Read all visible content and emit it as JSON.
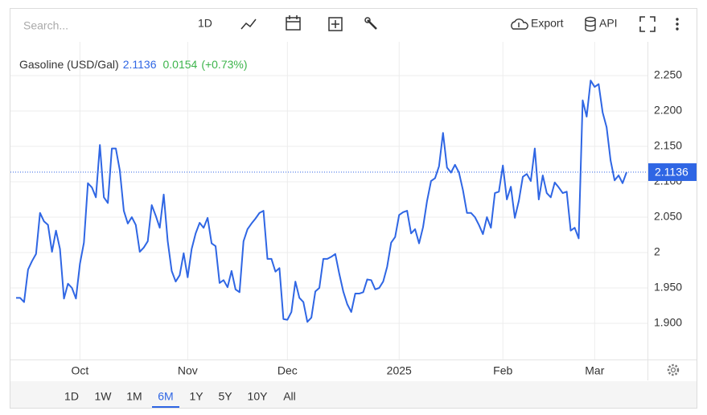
{
  "toolbar": {
    "search_placeholder": "Search...",
    "interval": "1D",
    "export": "Export",
    "api": "API"
  },
  "range_buttons": {
    "items": [
      "1D",
      "1W",
      "1M",
      "6M",
      "1Y",
      "5Y",
      "10Y",
      "All"
    ],
    "selected": "6M"
  },
  "chart_data": {
    "type": "line",
    "legend_name": "Gasoline (USD/Gal)",
    "change": "0.0154",
    "change_pct": "(+0.73%)",
    "categories": [
      null,
      null,
      null,
      null,
      null,
      null,
      null,
      null,
      null,
      null,
      null,
      null,
      null,
      null,
      null,
      null,
      "Oct",
      null,
      null,
      null,
      null,
      null,
      null,
      null,
      null,
      null,
      null,
      null,
      null,
      null,
      null,
      null,
      null,
      null,
      null,
      null,
      null,
      null,
      null,
      null,
      null,
      null,
      null,
      "Nov",
      null,
      null,
      null,
      null,
      null,
      null,
      null,
      null,
      null,
      null,
      null,
      null,
      null,
      null,
      null,
      null,
      null,
      null,
      null,
      null,
      null,
      null,
      null,
      null,
      "Dec",
      null,
      null,
      null,
      null,
      null,
      null,
      null,
      null,
      null,
      null,
      null,
      null,
      null,
      null,
      null,
      null,
      null,
      null,
      null,
      null,
      null,
      null,
      null,
      null,
      null,
      null,
      null,
      "2025",
      null,
      null,
      null,
      null,
      null,
      null,
      null,
      null,
      null,
      null,
      null,
      null,
      null,
      null,
      null,
      null,
      null,
      null,
      null,
      null,
      null,
      null,
      null,
      null,
      null,
      "Feb",
      null,
      null,
      null,
      null,
      null,
      null,
      null,
      null,
      null,
      null,
      null,
      null,
      null,
      null,
      null,
      null,
      null,
      null,
      null,
      null,
      null,
      null,
      "Mar",
      null,
      null,
      null,
      null,
      null,
      null,
      null,
      null
    ],
    "series": [
      {
        "name": "Gasoline (USD/Gal)",
        "color": "#2f66e4",
        "values": [
          1.936,
          1.936,
          1.93,
          1.976,
          1.988,
          1.998,
          2.056,
          2.044,
          2.039,
          2.001,
          2.031,
          2.005,
          1.935,
          1.956,
          1.95,
          1.935,
          1.984,
          2.014,
          2.098,
          2.092,
          2.078,
          2.152,
          2.078,
          2.07,
          2.147,
          2.147,
          2.116,
          2.059,
          2.041,
          2.05,
          2.039,
          2.001,
          2.007,
          2.016,
          2.067,
          2.052,
          2.035,
          2.082,
          2.016,
          1.974,
          1.959,
          1.968,
          1.999,
          1.965,
          2.005,
          2.027,
          2.042,
          2.035,
          2.049,
          2.013,
          2.009,
          1.957,
          1.961,
          1.951,
          1.974,
          1.948,
          1.944,
          2.016,
          2.033,
          2.041,
          2.048,
          2.056,
          2.059,
          1.991,
          1.991,
          1.973,
          1.978,
          1.906,
          1.905,
          1.916,
          1.959,
          1.936,
          1.93,
          1.902,
          1.908,
          1.945,
          1.95,
          1.991,
          1.991,
          1.994,
          1.998,
          1.97,
          1.945,
          1.927,
          1.916,
          1.942,
          1.942,
          1.944,
          1.962,
          1.961,
          1.948,
          1.95,
          1.959,
          1.98,
          2.014,
          2.022,
          2.053,
          2.057,
          2.059,
          2.027,
          2.033,
          2.013,
          2.036,
          2.073,
          2.101,
          2.105,
          2.122,
          2.169,
          2.12,
          2.113,
          2.124,
          2.113,
          2.088,
          2.056,
          2.056,
          2.05,
          2.039,
          2.026,
          2.05,
          2.035,
          2.084,
          2.086,
          2.123,
          2.075,
          2.093,
          2.049,
          2.073,
          2.107,
          2.111,
          2.101,
          2.147,
          2.075,
          2.109,
          2.084,
          2.078,
          2.099,
          2.092,
          2.084,
          2.086,
          2.031,
          2.035,
          2.02,
          2.215,
          2.192,
          2.243,
          2.234,
          2.238,
          2.198,
          2.177,
          2.13,
          2.102,
          2.109,
          2.098,
          2.1136
        ]
      }
    ],
    "ylim": [
      1.85,
      2.3
    ],
    "yticks": [
      {
        "value": 1.9,
        "label": "1.900"
      },
      {
        "value": 1.95,
        "label": "1.950"
      },
      2,
      {
        "value": 2.05,
        "label": "2.050"
      },
      {
        "value": 2.1,
        "label": "2.100"
      },
      {
        "value": 2.15,
        "label": "2.150"
      },
      {
        "value": 2.2,
        "label": "2.200"
      },
      {
        "value": 2.25,
        "label": "2.250"
      }
    ],
    "grid": true,
    "change_color": "#3cb44b"
  }
}
